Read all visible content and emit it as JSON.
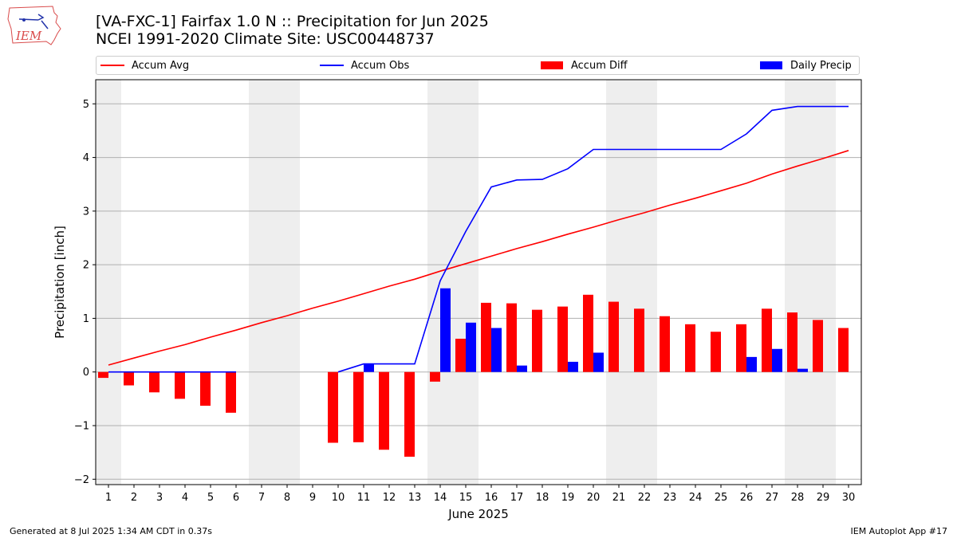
{
  "header": {
    "title_line1": "[VA-FXC-1] Fairfax 1.0 N :: Precipitation for Jun 2025",
    "title_line2": "NCEI 1991-2020 Climate Site: USC00448737",
    "logo_text": "IEM"
  },
  "footer": {
    "generated": "Generated at 8 Jul 2025 1:34 AM CDT in 0.37s",
    "app": "IEM Autoplot App #17"
  },
  "colors": {
    "accum_avg": "#ff0000",
    "accum_obs": "#0000ff",
    "accum_diff": "#ff0000",
    "daily_precip": "#0000ff",
    "weekend_shade": "#eeeeee",
    "grid": "#b0b0b0"
  },
  "chart_data": {
    "type": "bar",
    "title": "[VA-FXC-1] Fairfax 1.0 N :: Precipitation for Jun 2025",
    "subtitle": "NCEI 1991-2020 Climate Site: USC00448737",
    "xlabel": "June 2025",
    "ylabel": "Precipitation [inch]",
    "ylim": [
      -2.1,
      5.45
    ],
    "yticks": [
      -2,
      -1,
      0,
      1,
      2,
      3,
      4,
      5
    ],
    "ytick_labels": [
      "−2",
      "−1",
      "0",
      "1",
      "2",
      "3",
      "4",
      "5"
    ],
    "categories": [
      1,
      2,
      3,
      4,
      5,
      6,
      7,
      8,
      9,
      10,
      11,
      12,
      13,
      14,
      15,
      16,
      17,
      18,
      19,
      20,
      21,
      22,
      23,
      24,
      25,
      26,
      27,
      28,
      29,
      30
    ],
    "grid": "horizontal",
    "legend_position": "top",
    "weekend_shading": [
      [
        1,
        1
      ],
      [
        7,
        8
      ],
      [
        14,
        15
      ],
      [
        21,
        22
      ],
      [
        28,
        29
      ]
    ],
    "series": [
      {
        "name": "Accum Avg",
        "kind": "line",
        "values": [
          0.13,
          0.26,
          0.39,
          0.51,
          0.65,
          0.78,
          0.92,
          1.05,
          1.19,
          1.32,
          1.46,
          1.6,
          1.73,
          1.88,
          2.02,
          2.16,
          2.3,
          2.43,
          2.57,
          2.7,
          2.84,
          2.97,
          3.11,
          3.24,
          3.38,
          3.52,
          3.69,
          3.84,
          3.98,
          4.13
        ]
      },
      {
        "name": "Accum Obs",
        "kind": "line",
        "values": [
          0.0,
          0.0,
          0.0,
          0.0,
          0.0,
          0.0,
          null,
          null,
          null,
          0.0,
          0.15,
          0.15,
          0.15,
          1.7,
          2.62,
          3.45,
          3.58,
          3.59,
          3.79,
          4.15,
          4.15,
          4.15,
          4.15,
          4.15,
          4.15,
          4.44,
          4.88,
          4.95,
          4.95,
          4.95
        ]
      },
      {
        "name": "Accum Diff",
        "kind": "bar",
        "values": [
          -0.11,
          -0.25,
          -0.38,
          -0.5,
          -0.63,
          -0.76,
          null,
          null,
          null,
          -1.32,
          -1.31,
          -1.45,
          -1.58,
          -0.18,
          0.62,
          1.29,
          1.28,
          1.16,
          1.22,
          1.44,
          1.31,
          1.18,
          1.04,
          0.89,
          0.75,
          0.89,
          1.18,
          1.11,
          0.97,
          0.82
        ]
      },
      {
        "name": "Daily Precip",
        "kind": "bar",
        "values": [
          0,
          0,
          0,
          0,
          0,
          0,
          null,
          null,
          null,
          0,
          0.15,
          0,
          0,
          1.56,
          0.92,
          0.82,
          0.12,
          0,
          0.19,
          0.36,
          0,
          0,
          0,
          0,
          0,
          0.28,
          0.43,
          0.06,
          0,
          0
        ]
      }
    ]
  }
}
